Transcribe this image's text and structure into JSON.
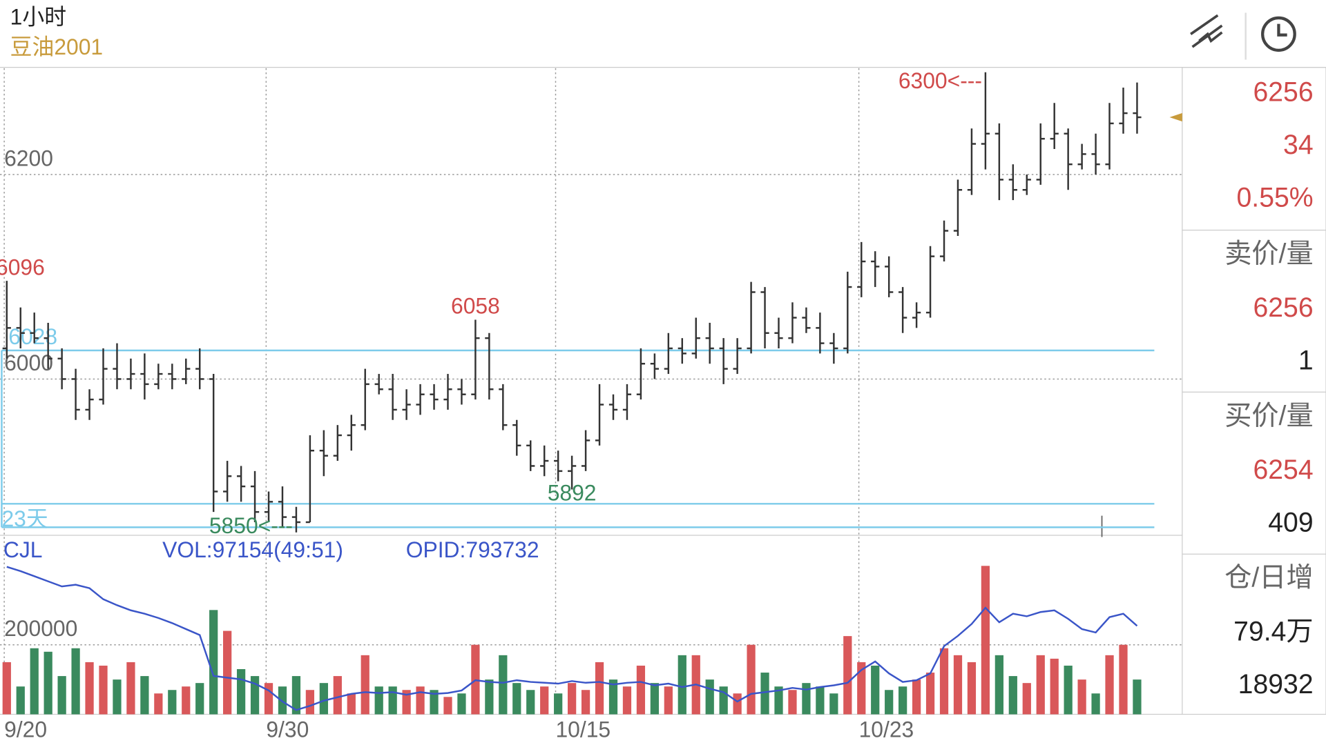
{
  "header": {
    "period": "1小时",
    "symbol": "豆油2001"
  },
  "quote_panel": {
    "last": "6256",
    "change": "34",
    "change_pct": "0.55%",
    "ask_label": "卖价/量",
    "ask": "6256",
    "ask_vol": "1",
    "bid_label": "买价/量",
    "bid": "6254",
    "bid_vol": "409",
    "oi_label": "仓/日增",
    "oi": "79.4万",
    "oi_change": "18932"
  },
  "chart_data": {
    "type": "ohlc",
    "categories": [
      "9/20",
      null,
      null,
      null,
      null,
      null,
      null,
      null,
      null,
      null,
      null,
      null,
      null,
      null,
      null,
      null,
      null,
      null,
      null,
      "9/30",
      null,
      null,
      null,
      null,
      null,
      null,
      null,
      null,
      null,
      null,
      null,
      null,
      null,
      null,
      null,
      null,
      null,
      null,
      null,
      null,
      "10/15",
      null,
      null,
      null,
      null,
      null,
      null,
      null,
      null,
      null,
      null,
      null,
      null,
      null,
      null,
      null,
      null,
      null,
      null,
      null,
      null,
      null,
      "10/23",
      null,
      null,
      null,
      null,
      null,
      null,
      null,
      null,
      null,
      null,
      null,
      null,
      null,
      null,
      null,
      null,
      null,
      null,
      null,
      null
    ],
    "open": [
      6030,
      6050,
      6045,
      6040,
      6020,
      6000,
      5970,
      5980,
      6010,
      6000,
      6005,
      5995,
      6005,
      6000,
      6010,
      6000,
      5890,
      5905,
      5895,
      5870,
      5880,
      5865,
      5860,
      5930,
      5925,
      5945,
      5955,
      5995,
      5990,
      5970,
      5975,
      5985,
      5980,
      5990,
      5985,
      6040,
      5990,
      5955,
      5935,
      5915,
      5920,
      5910,
      5915,
      5940,
      5975,
      5970,
      5985,
      6015,
      6010,
      6030,
      6025,
      6040,
      6030,
      6010,
      6030,
      6085,
      6045,
      6040,
      6060,
      6050,
      6035,
      6030,
      6090,
      6115,
      6110,
      6085,
      6060,
      6065,
      6120,
      6145,
      6185,
      6230,
      6240,
      6195,
      6185,
      6195,
      6235,
      6240,
      6210,
      6220,
      6210,
      6250,
      6260
    ],
    "high": [
      6096,
      6070,
      6065,
      6055,
      6030,
      6010,
      5990,
      6030,
      6035,
      6020,
      6025,
      6015,
      6015,
      6020,
      6030,
      6005,
      5920,
      5915,
      5910,
      5890,
      5895,
      5875,
      5945,
      5950,
      5955,
      5965,
      6010,
      6005,
      6005,
      5990,
      5995,
      5995,
      6005,
      6000,
      6058,
      6045,
      5995,
      5960,
      5940,
      5935,
      5930,
      5925,
      5950,
      5995,
      5985,
      5995,
      6030,
      6025,
      6045,
      6040,
      6060,
      6055,
      6040,
      6040,
      6095,
      6090,
      6060,
      6075,
      6070,
      6065,
      6045,
      6105,
      6134,
      6125,
      6120,
      6090,
      6075,
      6130,
      6155,
      6195,
      6245,
      6300,
      6250,
      6210,
      6200,
      6250,
      6270,
      6245,
      6230,
      6240,
      6270,
      6285,
      6290
    ],
    "low": [
      6020,
      6030,
      6035,
      6010,
      5990,
      5960,
      5960,
      5975,
      5990,
      5990,
      5980,
      5990,
      5990,
      5995,
      5990,
      5870,
      5880,
      5880,
      5860,
      5860,
      5855,
      5850,
      5860,
      5905,
      5920,
      5930,
      5950,
      5985,
      5960,
      5960,
      5965,
      5970,
      5970,
      5975,
      5980,
      5980,
      5950,
      5925,
      5910,
      5905,
      5900,
      5892,
      5910,
      5935,
      5960,
      5960,
      5980,
      6000,
      6005,
      6015,
      6020,
      6015,
      5995,
      6005,
      6025,
      6030,
      6030,
      6035,
      6045,
      6025,
      6015,
      6025,
      6080,
      6090,
      6080,
      6045,
      6050,
      6060,
      6115,
      6140,
      6180,
      6205,
      6175,
      6175,
      6180,
      6190,
      6225,
      6185,
      6205,
      6200,
      6205,
      6240,
      6240
    ],
    "close": [
      6050,
      6045,
      6040,
      6020,
      6000,
      5970,
      5980,
      6010,
      6000,
      6005,
      5995,
      6005,
      6000,
      6010,
      6000,
      5890,
      5905,
      5895,
      5870,
      5880,
      5865,
      5860,
      5930,
      5925,
      5945,
      5955,
      5995,
      5990,
      5970,
      5975,
      5985,
      5980,
      5990,
      5985,
      6040,
      5990,
      5955,
      5935,
      5915,
      5920,
      5910,
      5915,
      5940,
      5975,
      5970,
      5985,
      6015,
      6010,
      6030,
      6025,
      6040,
      6030,
      6010,
      6030,
      6085,
      6045,
      6040,
      6060,
      6050,
      6035,
      6030,
      6090,
      6115,
      6110,
      6085,
      6060,
      6065,
      6120,
      6145,
      6185,
      6230,
      6240,
      6195,
      6185,
      6195,
      6235,
      6240,
      6210,
      6220,
      6210,
      6250,
      6260,
      6256
    ],
    "bar_color": "#333333",
    "ylim": [
      5848,
      6304
    ],
    "yticks": [
      6000,
      6200
    ],
    "grid": true,
    "price_lines": [
      6028,
      5878,
      5855
    ],
    "price_line_color": "#7ccbea",
    "period_label": "23天",
    "annotations": [
      {
        "value": 6096,
        "label": "6096"
      },
      {
        "value": 6058,
        "label": "6058"
      },
      {
        "value": 5892,
        "label": "5892"
      },
      {
        "value": 6300,
        "label": "6300<---"
      },
      {
        "value": 5850,
        "label": "5850<---"
      }
    ],
    "high_color": "#d04a4a",
    "low_color": "#3a8a5e",
    "marker_color": "#c89b3c",
    "volume_panel": {
      "title": "CJL",
      "vol": "VOL:97154(49:51)",
      "opid": "OPID:793732"
    },
    "volume": [
      150000,
      80000,
      190000,
      180000,
      110000,
      190000,
      150000,
      140000,
      100000,
      150000,
      110000,
      60000,
      70000,
      80000,
      90000,
      300000,
      240000,
      130000,
      110000,
      90000,
      80000,
      110000,
      70000,
      90000,
      110000,
      60000,
      170000,
      80000,
      80000,
      70000,
      80000,
      70000,
      50000,
      60000,
      200000,
      100000,
      170000,
      90000,
      70000,
      80000,
      60000,
      90000,
      70000,
      150000,
      100000,
      80000,
      140000,
      90000,
      80000,
      170000,
      170000,
      100000,
      80000,
      60000,
      200000,
      120000,
      80000,
      70000,
      90000,
      80000,
      60000,
      225000,
      150000,
      140000,
      70000,
      80000,
      100000,
      120000,
      190000,
      170000,
      150000,
      427000,
      170000,
      110000,
      90000,
      170000,
      160000,
      140000,
      100000,
      60000,
      170000,
      200000,
      100000
    ],
    "up_color": "#d9585a",
    "down_color": "#3a8a5e",
    "vlim": [
      0,
      510000
    ],
    "vticks": [
      200000
    ],
    "series": [
      {
        "name": "OPID",
        "color": "#3a55c8",
        "axis": "y2",
        "values": [
          863000,
          858000,
          852000,
          846000,
          840000,
          842000,
          838000,
          825000,
          818000,
          812000,
          808000,
          803000,
          797000,
          790000,
          783000,
          735000,
          733000,
          731000,
          726000,
          718000,
          705000,
          695000,
          700000,
          706000,
          710000,
          714000,
          716000,
          715000,
          716000,
          713000,
          716000,
          714000,
          715000,
          718000,
          730000,
          728000,
          727000,
          730000,
          728000,
          727000,
          726000,
          729000,
          727000,
          728000,
          725000,
          727000,
          728000,
          724000,
          726000,
          722000,
          725000,
          720000,
          716000,
          705000,
          714000,
          716000,
          718000,
          721000,
          719000,
          722000,
          724000,
          727000,
          742000,
          752000,
          738000,
          728000,
          730000,
          738000,
          770000,
          782000,
          796000,
          815000,
          798000,
          808000,
          805000,
          810000,
          812000,
          802000,
          790000,
          786000,
          804000,
          808000,
          793732
        ]
      }
    ],
    "y2lim": [
      690000,
      898000
    ]
  }
}
